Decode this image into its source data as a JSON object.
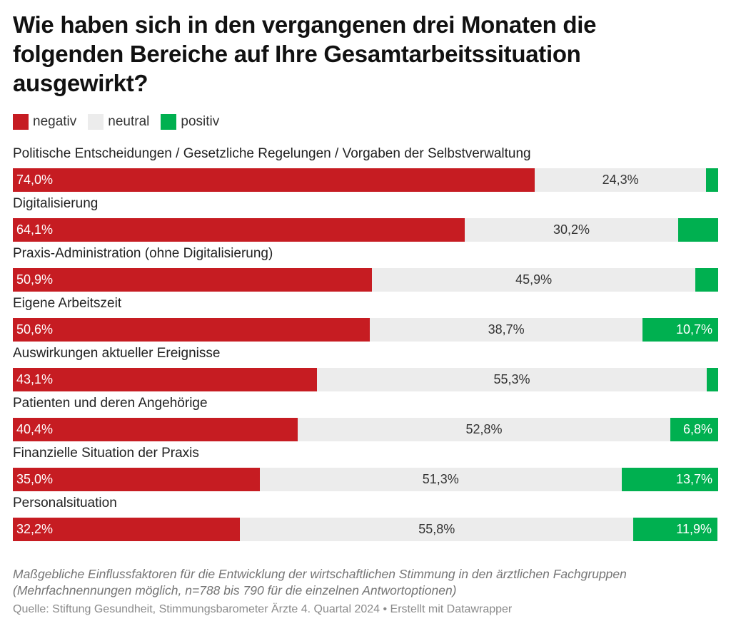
{
  "title": "Wie haben sich in den vergangenen drei Monaten die folgenden Bereiche auf Ihre Gesamtarbeitssituation ausgewirkt?",
  "legend": [
    {
      "label": "negativ",
      "color": "#c61c22"
    },
    {
      "label": "neutral",
      "color": "#ececec"
    },
    {
      "label": "positiv",
      "color": "#00b050"
    }
  ],
  "chart_data": {
    "type": "bar",
    "orientation": "horizontal",
    "stacked": true,
    "normalized_to": 100,
    "categories": [
      "Politische Entscheidungen / Gesetzliche Regelungen / Vorgaben der Selbstverwaltung",
      "Digitalisierung",
      "Praxis-Administration (ohne Digitalisierung)",
      "Eigene Arbeitszeit",
      "Auswirkungen aktueller Ereignisse",
      "Patienten und deren Angehörige",
      "Finanzielle Situation der Praxis",
      "Personalsituation"
    ],
    "series": [
      {
        "name": "negativ",
        "color": "#c61c22",
        "values": [
          74.0,
          64.1,
          50.9,
          50.6,
          43.1,
          40.4,
          35.0,
          32.2
        ],
        "labels": [
          "74,0%",
          "64,1%",
          "50,9%",
          "50,6%",
          "43,1%",
          "40,4%",
          "35,0%",
          "32,2%"
        ]
      },
      {
        "name": "neutral",
        "color": "#ececec",
        "values": [
          24.3,
          30.2,
          45.9,
          38.7,
          55.3,
          52.8,
          51.3,
          55.8
        ],
        "labels": [
          "24,3%",
          "30,2%",
          "45,9%",
          "38,7%",
          "55,3%",
          "52,8%",
          "51,3%",
          "55,8%"
        ]
      },
      {
        "name": "positiv",
        "color": "#00b050",
        "values": [
          1.7,
          5.7,
          3.2,
          10.7,
          1.6,
          6.8,
          13.7,
          11.9
        ],
        "labels": [
          "",
          "",
          "",
          "10,7%",
          "",
          "6,8%",
          "13,7%",
          "11,9%"
        ]
      }
    ]
  },
  "note": "Maßgebliche Einflussfaktoren für die Entwicklung der wirtschaftlichen Stimmung in den ärztlichen Fachgruppen (Mehrfachnennungen möglich, n=788 bis 790 für die einzelnen Antwortoptionen)",
  "source": "Quelle: Stiftung Gesundheit, Stimmungsbarometer Ärzte 4. Quartal 2024 • Erstellt mit Datawrapper"
}
